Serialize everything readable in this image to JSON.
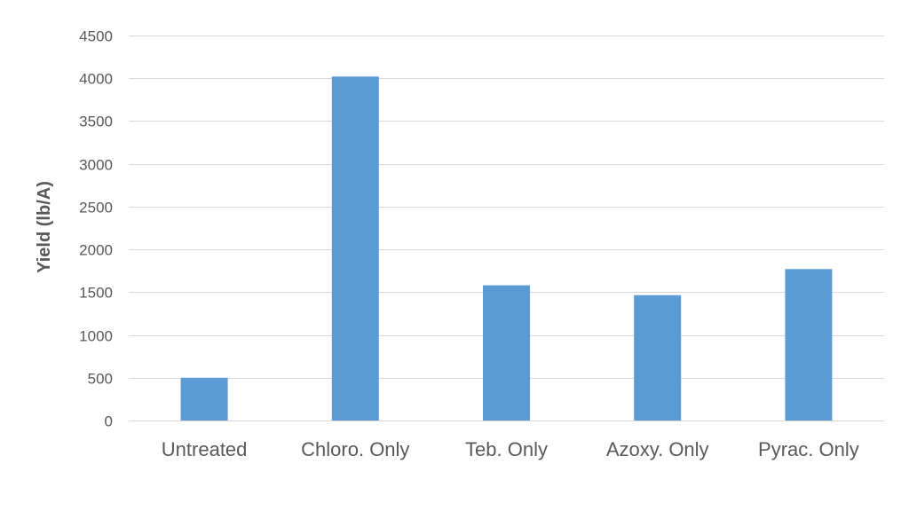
{
  "chart_data": {
    "type": "bar",
    "title": "",
    "xlabel": "",
    "ylabel": "Yield (lb/A)",
    "categories": [
      "Untreated",
      "Chloro. Only",
      "Teb. Only",
      "Azoxy. Only",
      "Pyrac. Only"
    ],
    "values": [
      500,
      4020,
      1580,
      1465,
      1770
    ],
    "ylim": [
      0,
      4500
    ],
    "yticks": [
      0,
      500,
      1000,
      1500,
      2000,
      2500,
      3000,
      3500,
      4000,
      4500
    ],
    "grid": true,
    "legend": "none",
    "bar_color": "#5b9bd5"
  }
}
